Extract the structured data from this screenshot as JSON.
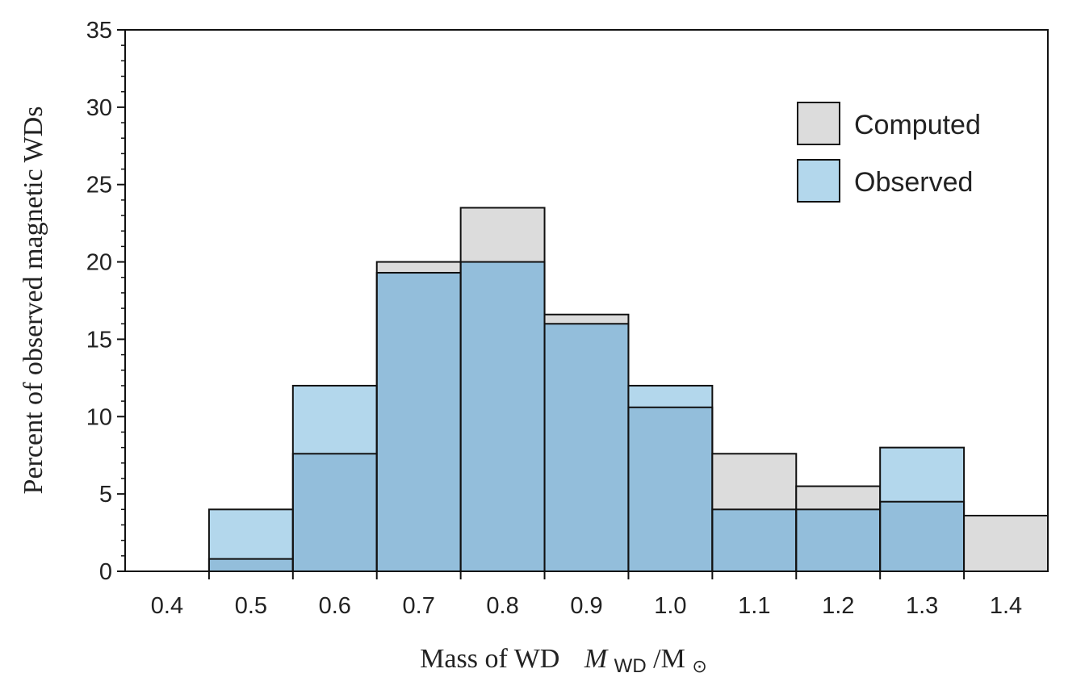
{
  "chart_data": {
    "type": "bar",
    "categories": [
      "0.4",
      "0.5",
      "0.6",
      "0.7",
      "0.8",
      "0.9",
      "1.0",
      "1.1",
      "1.2",
      "1.3",
      "1.4"
    ],
    "x": [
      0.4,
      0.5,
      0.6,
      0.7,
      0.8,
      0.9,
      1.0,
      1.1,
      1.2,
      1.3,
      1.4
    ],
    "series": [
      {
        "name": "Computed",
        "values": [
          0,
          0.8,
          7.6,
          20.0,
          23.5,
          16.6,
          10.6,
          7.6,
          5.5,
          4.5,
          3.6
        ]
      },
      {
        "name": "Observed",
        "values": [
          0,
          4.0,
          12.0,
          19.3,
          20.0,
          16.0,
          12.0,
          4.0,
          4.0,
          8.0,
          0
        ]
      }
    ],
    "xlabel": {
      "prefix": "Mass of WD",
      "symbol": "M",
      "subscript": "WD",
      "suffix": "/M",
      "sun_symbol": "⊙"
    },
    "ylabel": "Percent of observed magnetic WDs",
    "ylim": [
      0,
      35
    ],
    "yticks": [
      "0",
      "5",
      "10",
      "15",
      "20",
      "25",
      "30",
      "35"
    ],
    "legend_position": "top-right",
    "grid": false
  },
  "colors": {
    "computed": "#dcdcdc",
    "observed": "#b3d7ec",
    "overlap": "#93bedb",
    "edge": "#111111"
  }
}
